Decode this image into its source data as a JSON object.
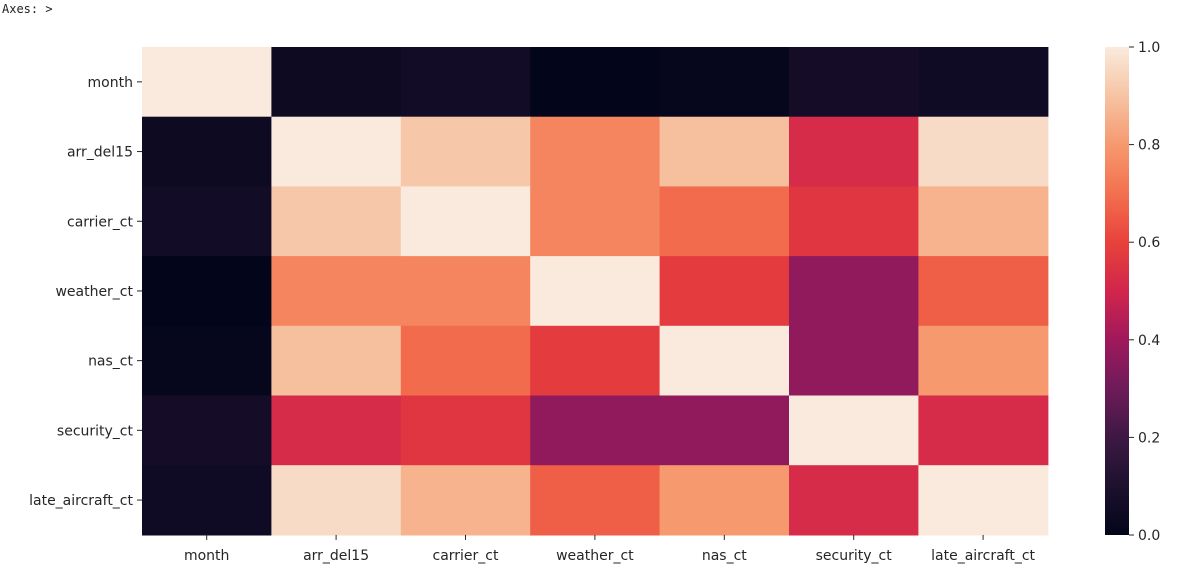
{
  "header": {
    "axes_text": "Axes: >"
  },
  "chart_data": {
    "type": "heatmap",
    "title": "",
    "xlabel": "",
    "ylabel": "",
    "rows": [
      "month",
      "arr_del15",
      "carrier_ct",
      "weather_ct",
      "nas_ct",
      "security_ct",
      "late_aircraft_ct"
    ],
    "columns": [
      "month",
      "arr_del15",
      "carrier_ct",
      "weather_ct",
      "nas_ct",
      "security_ct",
      "late_aircraft_ct"
    ],
    "values": [
      [
        1.0,
        0.04,
        0.06,
        0.0,
        0.01,
        0.07,
        0.05
      ],
      [
        0.04,
        1.0,
        0.91,
        0.75,
        0.89,
        0.52,
        0.96
      ],
      [
        0.06,
        0.91,
        1.0,
        0.75,
        0.69,
        0.56,
        0.86
      ],
      [
        0.0,
        0.75,
        0.75,
        1.0,
        0.58,
        0.37,
        0.66
      ],
      [
        0.01,
        0.89,
        0.69,
        0.58,
        1.0,
        0.37,
        0.8
      ],
      [
        0.07,
        0.52,
        0.56,
        0.37,
        0.37,
        1.0,
        0.52
      ],
      [
        0.05,
        0.96,
        0.86,
        0.66,
        0.8,
        0.52,
        1.0
      ]
    ],
    "colorbar": {
      "min": 0.0,
      "max": 1.0,
      "ticks": [
        0.0,
        0.2,
        0.4,
        0.6,
        0.8,
        1.0
      ],
      "tick_labels": [
        "0.0",
        "0.2",
        "0.4",
        "0.6",
        "0.8",
        "1.0"
      ],
      "colormap": "rocket"
    }
  }
}
